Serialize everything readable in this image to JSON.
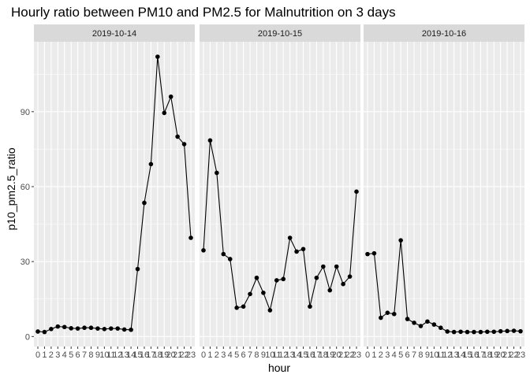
{
  "chart_data": {
    "type": "line",
    "title": "Hourly ratio between PM10 and PM2.5 for Malnutrition on 3 days",
    "xlabel": "hour",
    "ylabel": "p10_pm2.5_ratio",
    "ylim": [
      -4,
      118
    ],
    "yticks": [
      0,
      30,
      60,
      90
    ],
    "x": [
      0,
      1,
      2,
      3,
      4,
      5,
      6,
      7,
      8,
      9,
      10,
      11,
      12,
      13,
      14,
      15,
      16,
      17,
      18,
      19,
      20,
      21,
      22,
      23
    ],
    "xtick_labels": [
      "0",
      "1",
      "2",
      "3",
      "4",
      "5",
      "6",
      "7",
      "8",
      "9",
      "10",
      "11",
      "12",
      "13",
      "14",
      "15",
      "16",
      "17",
      "18",
      "19",
      "20",
      "21",
      "22",
      "23"
    ],
    "grid": true,
    "legend": "none",
    "colors": {
      "panel_bg": "#ebebeb",
      "grid": "#ffffff",
      "strip_bg": "#d9d9d9",
      "line": "#000000",
      "point": "#000000"
    },
    "facets": [
      {
        "label": "2019-10-14",
        "values": [
          2,
          1.8,
          3,
          4,
          3.8,
          3.3,
          3.2,
          3.5,
          3.5,
          3.2,
          3,
          3.2,
          3.2,
          2.8,
          2.7,
          27,
          53.5,
          69,
          112,
          89.5,
          96,
          80,
          77,
          39.5
        ]
      },
      {
        "label": "2019-10-15",
        "values": [
          34.5,
          78.5,
          65.5,
          33,
          31,
          11.5,
          12,
          17,
          23.5,
          17.5,
          10.5,
          22.5,
          23,
          39.5,
          34,
          35,
          12,
          23.5,
          28,
          18.5,
          28,
          21,
          24,
          58
        ]
      },
      {
        "label": "2019-10-16",
        "values": [
          33,
          33.3,
          7.5,
          9.5,
          9,
          38.5,
          7,
          5.5,
          4.2,
          6,
          4.8,
          3.5,
          2,
          1.8,
          1.9,
          1.8,
          1.8,
          1.8,
          1.9,
          1.9,
          2.1,
          2.2,
          2.3,
          2.1
        ]
      }
    ]
  }
}
